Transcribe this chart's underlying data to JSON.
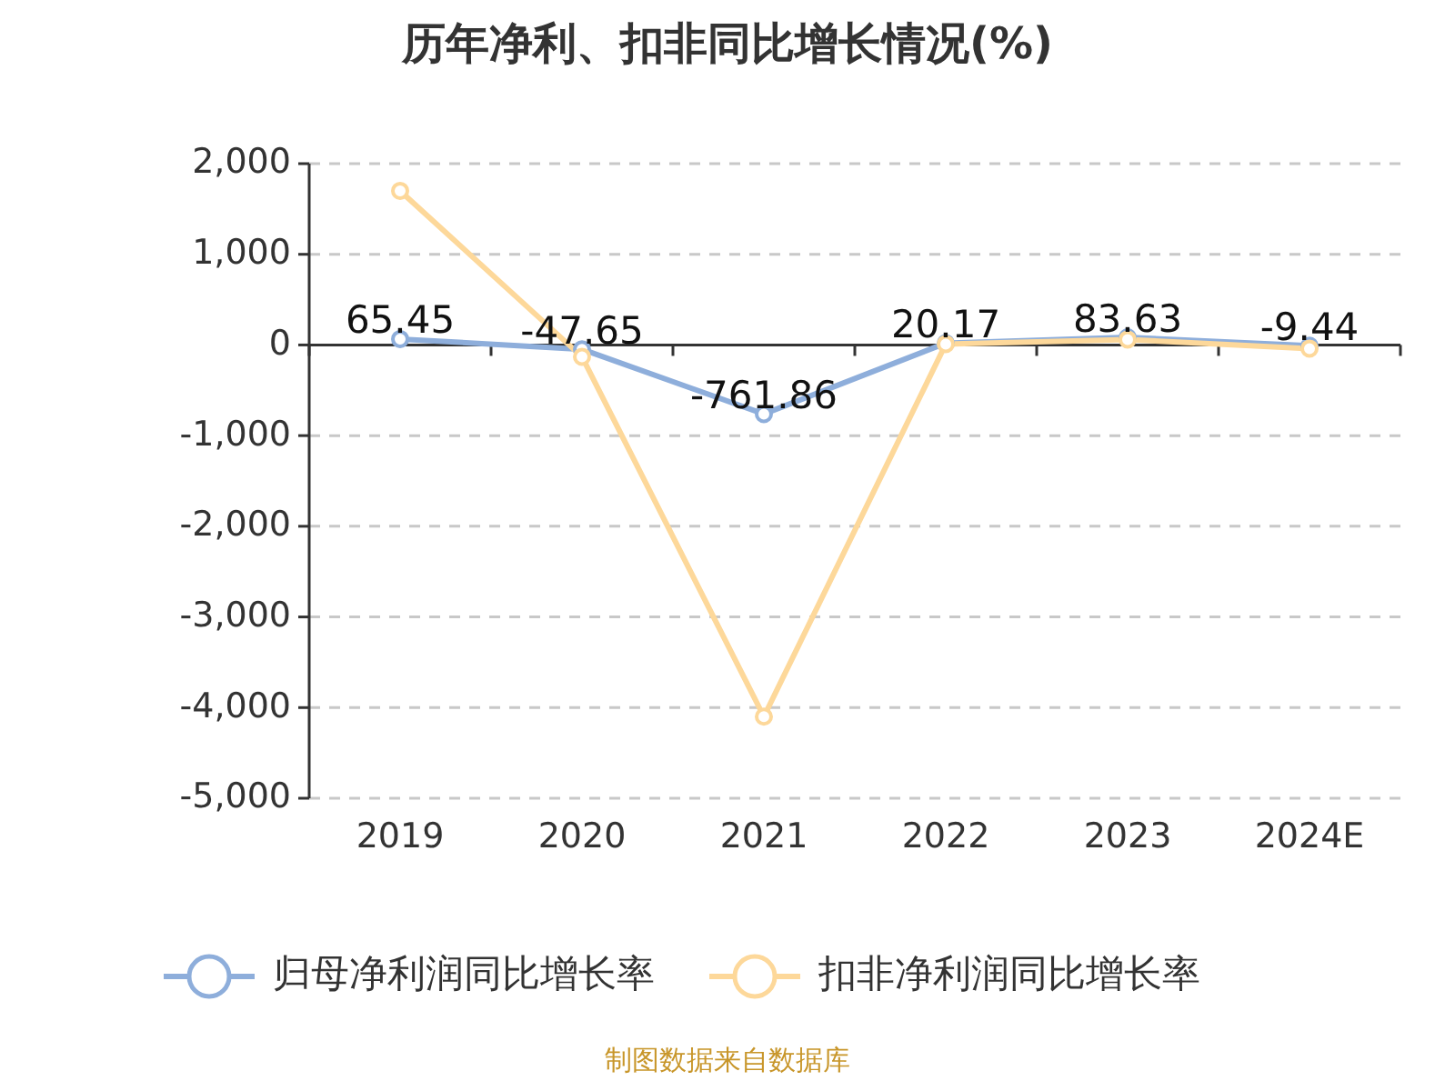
{
  "chart_data": {
    "type": "line",
    "title": "历年净利、扣非同比增长情况(%)",
    "categories": [
      "2019",
      "2020",
      "2021",
      "2022",
      "2023",
      "2024E"
    ],
    "series": [
      {
        "name": "归母净利润同比增长率",
        "color": "#8eaedb",
        "values": [
          65.45,
          -47.65,
          -761.86,
          20.17,
          83.63,
          -9.44
        ],
        "value_labels": [
          "65.45",
          "-47.65",
          "-761.86",
          "20.17",
          "83.63",
          "-9.44"
        ]
      },
      {
        "name": "扣非净利润同比增长率",
        "color": "#fdd89a",
        "values": [
          1700,
          -130,
          -4100,
          10,
          60,
          -40
        ]
      }
    ],
    "ylim": [
      -5000,
      2000
    ],
    "yticks": [
      {
        "value": 2000,
        "label": "2,000"
      },
      {
        "value": 1000,
        "label": "1,000"
      },
      0,
      {
        "value": -1000,
        "label": "-1,000"
      },
      {
        "value": -2000,
        "label": "-2,000"
      },
      {
        "value": -3000,
        "label": "-3,000"
      },
      {
        "value": -4000,
        "label": "-4,000"
      },
      {
        "value": -5000,
        "label": "-5,000"
      }
    ],
    "grid": "y",
    "legend": "bottom",
    "marker": "circle",
    "line_style": "solid",
    "annotations": [
      "制图数据来自数据库"
    ]
  }
}
